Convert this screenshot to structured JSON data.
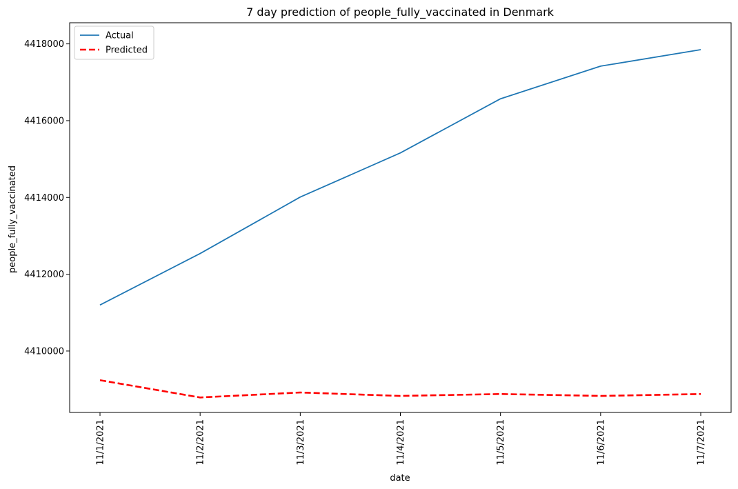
{
  "chart_data": {
    "type": "line",
    "title": "7 day prediction of people_fully_vaccinated in Denmark",
    "xlabel": "date",
    "ylabel": "people_fully_vaccinated",
    "categories": [
      "11/1/2021",
      "11/2/2021",
      "11/3/2021",
      "11/4/2021",
      "11/5/2021",
      "11/6/2021",
      "11/7/2021"
    ],
    "yticks": [
      4410000,
      4412000,
      4414000,
      4416000,
      4418000
    ],
    "ylim": [
      4408400,
      4418550
    ],
    "grid": false,
    "legend_position": "top-left",
    "series": [
      {
        "name": "Actual",
        "color": "#1f77b4",
        "style": "solid",
        "values": [
          4411200,
          4412540,
          4414010,
          4415160,
          4416570,
          4417420,
          4417850
        ]
      },
      {
        "name": "Predicted",
        "color": "#ff0000",
        "style": "dashed",
        "values": [
          4409240,
          4408790,
          4408920,
          4408830,
          4408880,
          4408830,
          4408880
        ]
      }
    ]
  }
}
